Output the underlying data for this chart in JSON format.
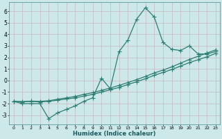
{
  "xlabel": "Humidex (Indice chaleur)",
  "x_values": [
    0,
    1,
    2,
    3,
    4,
    5,
    6,
    7,
    8,
    9,
    10,
    11,
    12,
    13,
    14,
    15,
    16,
    17,
    18,
    19,
    20,
    21,
    22,
    23
  ],
  "line1_y": [
    -1.8,
    -2.0,
    -2.0,
    -2.0,
    -3.3,
    -2.8,
    -2.5,
    -2.2,
    -1.8,
    -1.5,
    0.2,
    -0.7,
    2.5,
    3.5,
    5.3,
    6.3,
    5.5,
    3.3,
    2.7,
    2.6,
    3.0,
    2.3,
    2.3,
    2.5
  ],
  "line2_y": [
    -1.8,
    -1.85,
    -1.8,
    -1.85,
    -1.8,
    -1.7,
    -1.6,
    -1.5,
    -1.35,
    -1.2,
    -1.0,
    -0.8,
    -0.6,
    -0.35,
    -0.1,
    0.15,
    0.45,
    0.7,
    0.95,
    1.25,
    1.55,
    1.8,
    2.05,
    2.35
  ],
  "line3_y": [
    -1.8,
    -1.82,
    -1.78,
    -1.8,
    -1.75,
    -1.62,
    -1.5,
    -1.38,
    -1.2,
    -1.05,
    -0.85,
    -0.65,
    -0.42,
    -0.18,
    0.08,
    0.35,
    0.65,
    0.9,
    1.18,
    1.5,
    1.82,
    2.1,
    2.38,
    2.65
  ],
  "line_color": "#2e7d72",
  "bg_color": "#cce8e8",
  "grid_color": "#c8b8c0",
  "ylim": [
    -3.8,
    6.8
  ],
  "yticks": [
    -3,
    -2,
    -1,
    0,
    1,
    2,
    3,
    4,
    5,
    6
  ],
  "xticks": [
    0,
    1,
    2,
    3,
    4,
    5,
    6,
    7,
    8,
    9,
    10,
    11,
    12,
    13,
    14,
    15,
    16,
    17,
    18,
    19,
    20,
    21,
    22,
    23
  ],
  "marker": "+",
  "marker_size": 4,
  "linewidth": 0.9
}
